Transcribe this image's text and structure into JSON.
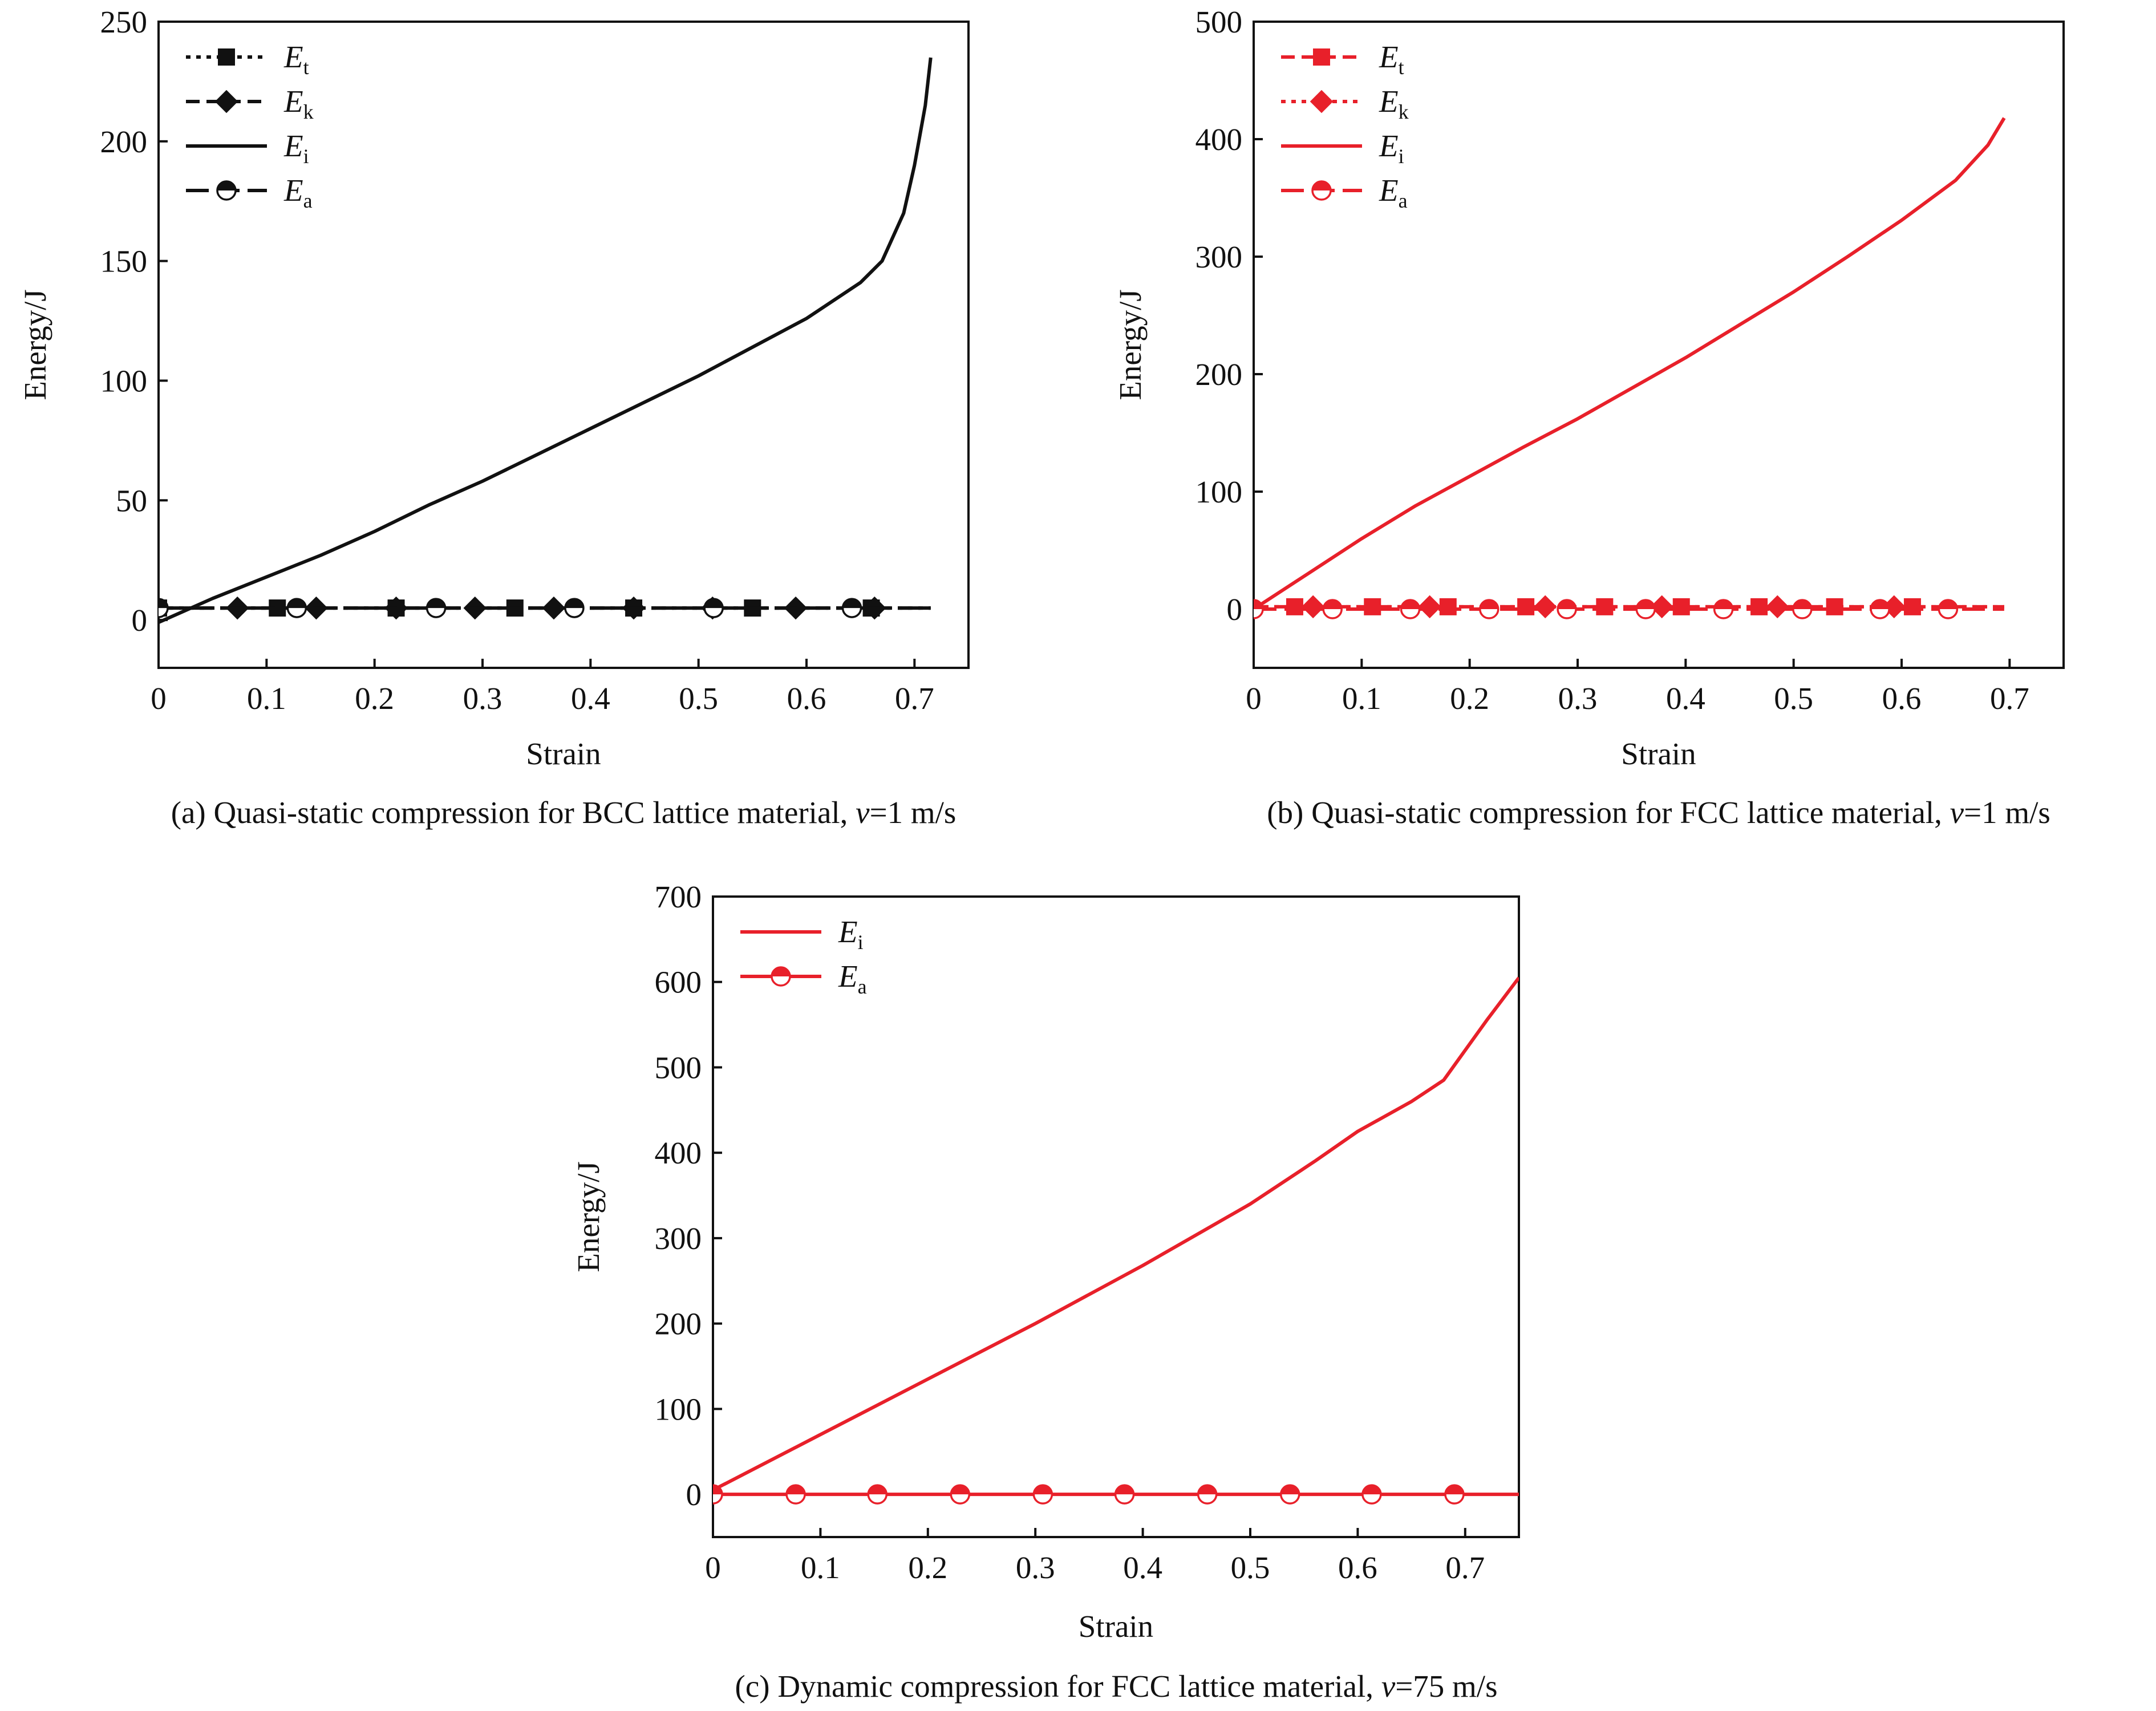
{
  "colors": {
    "black": "#111111",
    "red": "#e8202a"
  },
  "chart_data": [
    {
      "id": "a",
      "type": "line",
      "caption": {
        "prefix": "(a) Quasi-static compression for BCC lattice material, ",
        "var": "v",
        "suffix": "=1 m/s"
      },
      "xlabel": "Strain",
      "ylabel": "Energy/J",
      "xlim": [
        0,
        0.75
      ],
      "ylim": [
        -20,
        250
      ],
      "xticks": [
        0,
        0.1,
        0.2,
        0.3,
        0.4,
        0.5,
        0.6,
        0.7
      ],
      "yticks": [
        0,
        50,
        100,
        150,
        200,
        250
      ],
      "xtick_labels": [
        "0",
        "0.1",
        "0.2",
        "0.3",
        "0.4",
        "0.5",
        "0.6",
        "0.7"
      ],
      "ytick_labels": [
        "0",
        "50",
        "100",
        "150",
        "200",
        "250"
      ],
      "legend_position": "top-left",
      "series": [
        {
          "name": "E",
          "sub": "t",
          "color": "#111111",
          "dash": "dot",
          "marker": "square",
          "x": [
            0,
            0.715
          ],
          "y": [
            5,
            5
          ],
          "markers_x": [
            0,
            0.11,
            0.22,
            0.33,
            0.44,
            0.55,
            0.66
          ]
        },
        {
          "name": "E",
          "sub": "k",
          "color": "#111111",
          "dash": "dash",
          "marker": "diamond",
          "x": [
            0,
            0.715
          ],
          "y": [
            5,
            5
          ],
          "markers_x": [
            0.073,
            0.146,
            0.22,
            0.293,
            0.366,
            0.44,
            0.513,
            0.59,
            0.663
          ]
        },
        {
          "name": "E",
          "sub": "i",
          "color": "#111111",
          "dash": "solid",
          "marker": "none",
          "x": [
            0,
            0.02,
            0.05,
            0.1,
            0.15,
            0.2,
            0.25,
            0.3,
            0.35,
            0.4,
            0.45,
            0.5,
            0.55,
            0.6,
            0.65,
            0.67,
            0.69,
            0.7,
            0.71,
            0.715
          ],
          "y": [
            -1,
            3,
            9,
            18,
            27,
            37,
            48,
            58,
            69,
            80,
            91,
            102,
            114,
            126,
            141,
            150,
            170,
            190,
            215,
            235
          ]
        },
        {
          "name": "E",
          "sub": "a",
          "color": "#111111",
          "dash": "longdash",
          "marker": "halfcircle",
          "x": [
            0,
            0.715
          ],
          "y": [
            5,
            5
          ],
          "markers_x": [
            0,
            0.128,
            0.257,
            0.385,
            0.514,
            0.642
          ]
        }
      ]
    },
    {
      "id": "b",
      "type": "line",
      "caption": {
        "prefix": "(b) Quasi-static compression for FCC lattice material, ",
        "var": "v",
        "suffix": "=1 m/s"
      },
      "xlabel": "Strain",
      "ylabel": "Energy/J",
      "xlim": [
        0,
        0.75
      ],
      "ylim": [
        -50,
        500
      ],
      "xticks": [
        0,
        0.1,
        0.2,
        0.3,
        0.4,
        0.5,
        0.6,
        0.7
      ],
      "yticks": [
        0,
        100,
        200,
        300,
        400,
        500
      ],
      "xtick_labels": [
        "0",
        "0.1",
        "0.2",
        "0.3",
        "0.4",
        "0.5",
        "0.6",
        "0.7"
      ],
      "ytick_labels": [
        "0",
        "100",
        "200",
        "300",
        "400",
        "500"
      ],
      "legend_position": "top-left",
      "series": [
        {
          "name": "E",
          "sub": "t",
          "color": "#e8202a",
          "dash": "dash",
          "marker": "square",
          "x": [
            0,
            0.695
          ],
          "y": [
            2,
            2
          ],
          "markers_x": [
            0.038,
            0.11,
            0.18,
            0.252,
            0.325,
            0.396,
            0.468,
            0.538,
            0.61
          ]
        },
        {
          "name": "E",
          "sub": "k",
          "color": "#e8202a",
          "dash": "dot",
          "marker": "diamond",
          "x": [
            0,
            0.695
          ],
          "y": [
            2,
            2
          ],
          "markers_x": [
            0.055,
            0.163,
            0.27,
            0.378,
            0.485,
            0.593
          ]
        },
        {
          "name": "E",
          "sub": "i",
          "color": "#e8202a",
          "dash": "solid",
          "marker": "none",
          "x": [
            0,
            0.05,
            0.1,
            0.15,
            0.2,
            0.25,
            0.3,
            0.35,
            0.4,
            0.45,
            0.5,
            0.55,
            0.6,
            0.65,
            0.68,
            0.695
          ],
          "y": [
            0,
            30,
            60,
            88,
            113,
            138,
            162,
            188,
            214,
            242,
            270,
            300,
            331,
            365,
            395,
            418
          ]
        },
        {
          "name": "E",
          "sub": "a",
          "color": "#e8202a",
          "dash": "longdash",
          "marker": "halfcircle",
          "x": [
            0,
            0.695
          ],
          "y": [
            0,
            0
          ],
          "markers_x": [
            0,
            0.073,
            0.145,
            0.218,
            0.29,
            0.363,
            0.435,
            0.508,
            0.58,
            0.643
          ]
        }
      ]
    },
    {
      "id": "c",
      "type": "line",
      "caption": {
        "prefix": "(c) Dynamic compression for FCC lattice material, ",
        "var": "v",
        "suffix": "=75 m/s"
      },
      "xlabel": "Strain",
      "ylabel": "Energy/J",
      "xlim": [
        0,
        0.75
      ],
      "ylim": [
        -50,
        700
      ],
      "xticks": [
        0,
        0.1,
        0.2,
        0.3,
        0.4,
        0.5,
        0.6,
        0.7
      ],
      "yticks": [
        0,
        100,
        200,
        300,
        400,
        500,
        600,
        700
      ],
      "xtick_labels": [
        "0",
        "0.1",
        "0.2",
        "0.3",
        "0.4",
        "0.5",
        "0.6",
        "0.7"
      ],
      "ytick_labels": [
        "0",
        "100",
        "200",
        "300",
        "400",
        "500",
        "600",
        "700"
      ],
      "legend_position": "top-left",
      "series": [
        {
          "name": "E",
          "sub": "i",
          "color": "#e8202a",
          "dash": "solid",
          "marker": "none",
          "x": [
            0,
            0.1,
            0.2,
            0.3,
            0.4,
            0.5,
            0.56,
            0.6,
            0.65,
            0.68,
            0.7,
            0.72,
            0.75
          ],
          "y": [
            5,
            70,
            135,
            200,
            268,
            340,
            390,
            425,
            460,
            485,
            520,
            555,
            605
          ]
        },
        {
          "name": "E",
          "sub": "a",
          "color": "#e8202a",
          "dash": "solid",
          "marker": "halfcircle",
          "x": [
            0,
            0.75
          ],
          "y": [
            0,
            0
          ],
          "markers_x": [
            0,
            0.077,
            0.153,
            0.23,
            0.307,
            0.383,
            0.46,
            0.537,
            0.613,
            0.69
          ]
        }
      ]
    }
  ]
}
